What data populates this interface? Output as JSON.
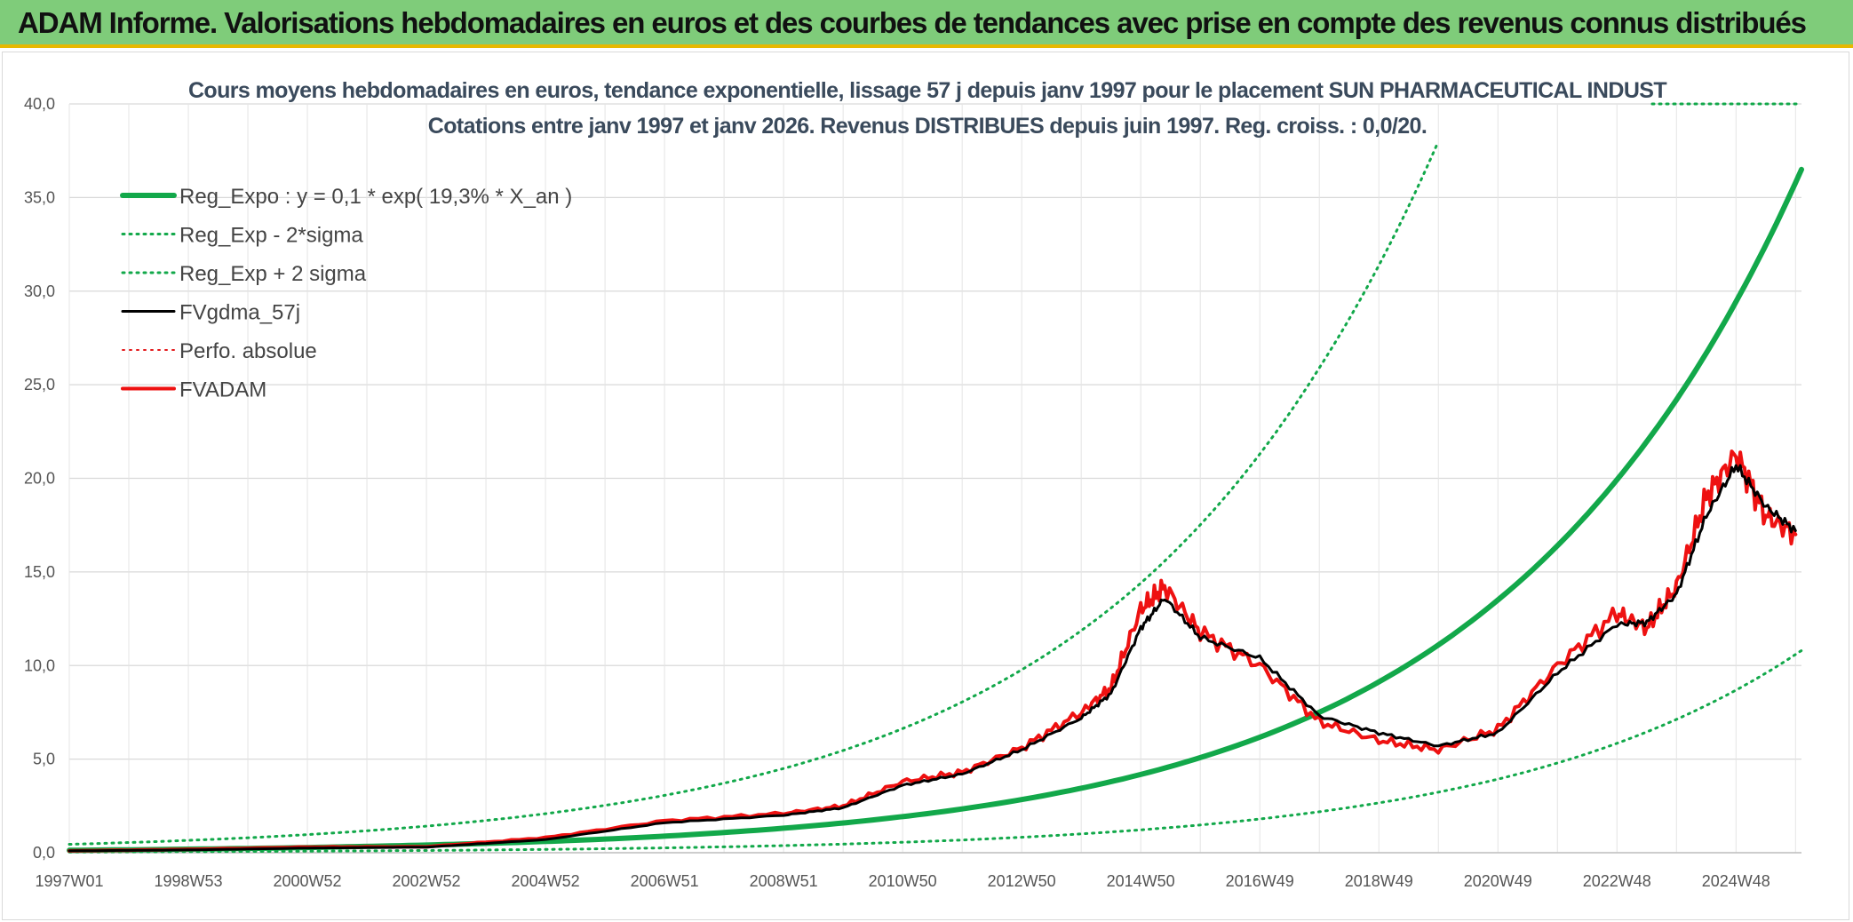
{
  "header": {
    "title": "ADAM Informe. Valorisations hebdomadaires en euros et des courbes de tendances avec prise en compte des revenus connus distribués"
  },
  "chart_data": {
    "type": "line",
    "title": "Cours moyens hebdomadaires en euros, tendance exponentielle, lissage 57 j depuis janv 1997 pour le placement SUN PHARMACEUTICAL INDUST",
    "subtitle": "Cotations entre janv 1997 et janv 2026. Revenus DISTRIBUES depuis juin 1997. Reg. croiss. : 0,0/20.",
    "xlabel": "",
    "ylabel": "",
    "xlim": [
      1997.0,
      2026.1
    ],
    "ylim": [
      0,
      40
    ],
    "y_ticks": [
      "0,0",
      "5,0",
      "10,0",
      "15,0",
      "20,0",
      "25,0",
      "30,0",
      "35,0",
      "40,0"
    ],
    "x_ticks": [
      {
        "label": "1997W01",
        "t": 1997.0
      },
      {
        "label": "1998W53",
        "t": 1999.0
      },
      {
        "label": "2000W52",
        "t": 2001.0
      },
      {
        "label": "2002W52",
        "t": 2003.0
      },
      {
        "label": "2004W52",
        "t": 2005.0
      },
      {
        "label": "2006W51",
        "t": 2007.0
      },
      {
        "label": "2008W51",
        "t": 2009.0
      },
      {
        "label": "2010W50",
        "t": 2011.0
      },
      {
        "label": "2012W50",
        "t": 2013.0
      },
      {
        "label": "2014W50",
        "t": 2015.0
      },
      {
        "label": "2016W49",
        "t": 2017.0
      },
      {
        "label": "2018W49",
        "t": 2019.0
      },
      {
        "label": "2020W49",
        "t": 2021.0
      },
      {
        "label": "2022W48",
        "t": 2023.0
      },
      {
        "label": "2024W48",
        "t": 2025.0
      }
    ],
    "legend": [
      {
        "label": "Reg_Expo : y = 0,1 * exp( 19,3% *  X_an )",
        "color": "#12a84a",
        "style": "solid",
        "width": 6
      },
      {
        "label": "Reg_Exp - 2*sigma",
        "color": "#12a84a",
        "style": "dotted",
        "width": 3
      },
      {
        "label": "Reg_Exp + 2 sigma",
        "color": "#12a84a",
        "style": "dotted",
        "width": 3
      },
      {
        "label": "FVgdma_57j",
        "color": "#000000",
        "style": "solid",
        "width": 3
      },
      {
        "label": "Perfo. absolue",
        "color": "#e31a1c",
        "style": "dotted",
        "width": 2
      },
      {
        "label": "FVADAM",
        "color": "#ee1111",
        "style": "solid",
        "width": 4
      }
    ],
    "series": [
      {
        "name": "Reg_Expo",
        "x": [
          1997.0,
          2000.0,
          2003.0,
          2006.0,
          2009.0,
          2012.0,
          2015.0,
          2018.0,
          2021.0,
          2024.0,
          2026.1
        ],
        "values": [
          0.13,
          0.23,
          0.41,
          0.73,
          1.31,
          2.34,
          4.18,
          7.5,
          13.5,
          24.2,
          36.5
        ]
      },
      {
        "name": "Reg_Exp - 2*sigma",
        "x": [
          1997.0,
          2003.0,
          2009.0,
          2015.0,
          2021.0,
          2026.1
        ],
        "values": [
          0.04,
          0.12,
          0.38,
          1.22,
          3.93,
          10.8
        ]
      },
      {
        "name": "Reg_Exp + 2 sigma",
        "x": [
          1997.0,
          2003.0,
          2009.0,
          2012.0,
          2015.0,
          2018.0,
          2020.0
        ],
        "values": [
          0.45,
          1.42,
          4.5,
          8.05,
          14.4,
          25.9,
          38.0
        ]
      },
      {
        "name": "FVgdma_57j",
        "x": [
          1997.0,
          1999.0,
          2001.0,
          2003.0,
          2005.0,
          2007.0,
          2009.0,
          2010.0,
          2011.0,
          2012.0,
          2013.0,
          2014.0,
          2014.5,
          2015.0,
          2015.4,
          2016.0,
          2017.0,
          2018.0,
          2019.0,
          2020.0,
          2021.0,
          2022.0,
          2023.0,
          2023.5,
          2024.0,
          2024.5,
          2025.0,
          2025.5,
          2026.0
        ],
        "values": [
          0.1,
          0.15,
          0.25,
          0.3,
          0.7,
          1.6,
          2.0,
          2.4,
          3.6,
          4.2,
          5.5,
          7.2,
          8.5,
          12.0,
          13.6,
          11.5,
          10.4,
          7.3,
          6.4,
          5.7,
          6.4,
          9.6,
          12.2,
          12.3,
          13.8,
          18.0,
          20.7,
          18.5,
          17.2
        ]
      },
      {
        "name": "FVADAM",
        "x": [
          1997.0,
          1999.0,
          2001.0,
          2003.0,
          2005.0,
          2007.0,
          2009.0,
          2010.0,
          2011.0,
          2012.0,
          2013.0,
          2014.0,
          2014.5,
          2015.0,
          2015.4,
          2016.0,
          2017.0,
          2018.0,
          2019.0,
          2020.0,
          2021.0,
          2022.0,
          2023.0,
          2023.5,
          2024.0,
          2024.5,
          2025.0,
          2025.5,
          2026.0
        ],
        "values": [
          0.1,
          0.18,
          0.3,
          0.32,
          0.8,
          1.7,
          2.1,
          2.5,
          3.8,
          4.3,
          5.6,
          7.5,
          8.8,
          13.0,
          14.2,
          11.8,
          10.0,
          7.0,
          6.0,
          5.5,
          6.6,
          10.0,
          12.8,
          12.0,
          14.2,
          19.0,
          21.3,
          18.0,
          17.0
        ]
      }
    ]
  }
}
